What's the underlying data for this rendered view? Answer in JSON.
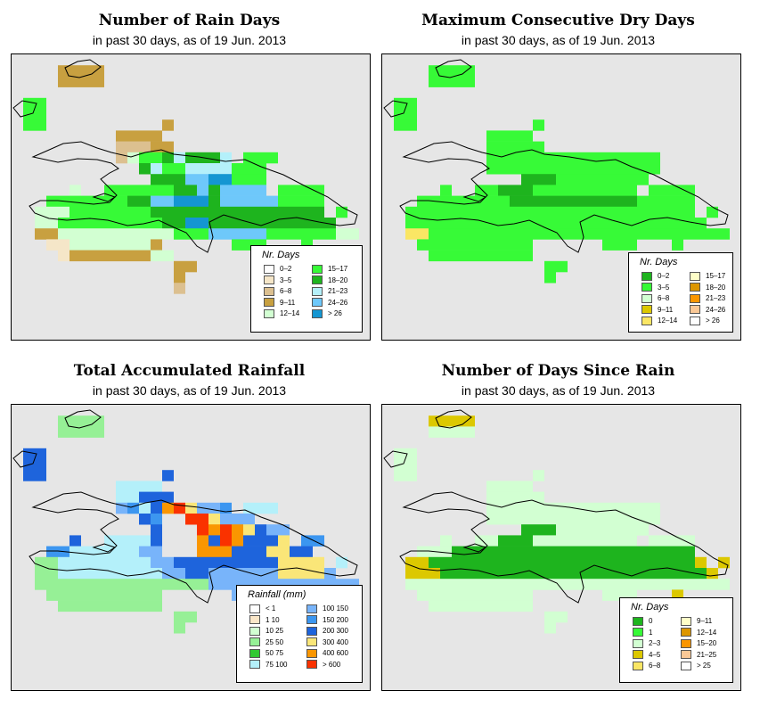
{
  "colors": {
    "map_bg": "#e6e6e6",
    "outline": "#000000"
  },
  "panels": [
    {
      "key": "rain_days",
      "title": "Number of Rain Days",
      "subtitle": "in past 30 days, as of  19 Jun. 2013",
      "legend": {
        "title": "Nr. Days",
        "entries": [
          {
            "label": "0–2",
            "color": "#ffffff"
          },
          {
            "label": "3–5",
            "color": "#f5e6c8"
          },
          {
            "label": "6–8",
            "color": "#dcc090"
          },
          {
            "label": "9–11",
            "color": "#c8a040"
          },
          {
            "label": "12–14",
            "color": "#d2ffd2"
          },
          {
            "label": "15–17",
            "color": "#37fa37"
          },
          {
            "label": "18–20",
            "color": "#1eb41e"
          },
          {
            "label": "21–23",
            "color": "#b4f0fa"
          },
          {
            "label": "24–26",
            "color": "#6ec8fa"
          },
          {
            "label": "> 26",
            "color": "#1496d2"
          }
        ]
      },
      "grid": [
        "...............................",
        "....3333.......................",
        "....3333.......................",
        "...............................",
        ".55............................",
        ".55............................",
        ".55..........3.................",
        ".........3333..................",
        ".........22233.................",
        ".........2455676667.555........",
        "...........67557777555.........",
        "............6668899555.........",
        ".....4..55555566868888.5555....",
        "...555555566889996888885555....",
        "..4445555555666666666666666.5..",
        "..44555555555669966666666666...",
        "..3344444444445558888855555544.",
        "...1144444443......555...5.....",
        "....1333333344.................",
        "..............33...............",
        "..............3................",
        "..............2.......................",
        "...............................",
        "...............................",
        "...............................",
        "...............................",
        "..............................."
      ]
    },
    {
      "key": "dry_days",
      "title": "Maximum Consecutive Dry Days",
      "subtitle": "in past 30 days, as of  19 Jun. 2013",
      "legend": {
        "title": "Nr. Days",
        "entries": [
          {
            "label": "0–2",
            "color": "#1eb41e"
          },
          {
            "label": "3–5",
            "color": "#37fa37"
          },
          {
            "label": "6–8",
            "color": "#d2ffd2"
          },
          {
            "label": "9–11",
            "color": "#dcc800"
          },
          {
            "label": "12–14",
            "color": "#fae664"
          },
          {
            "label": "15–17",
            "color": "#ffffc8"
          },
          {
            "label": "18–20",
            "color": "#dc9600"
          },
          {
            "label": "21–23",
            "color": "#fa9600"
          },
          {
            "label": "24–26",
            "color": "#fac896"
          },
          {
            "label": "> 26",
            "color": "#ffffff"
          }
        ]
      },
      "grid": [
        "...............................",
        "....1111.......................",
        "....1111.......................",
        "...............................",
        ".11............................",
        ".11............................",
        ".11..........1.................",
        ".........1111..................",
        ".........11111.................",
        ".........111111111111111.......",
        ".........111111111111111.......",
        "............00011111111........",
        ".....1..11000111111111.1111....",
        "...111111110000000000011111....",
        "..1111111111111111111111111.1..",
        "..11111111111111111111111111...",
        "..4411111111111111111111111111.",
        "...1111111111......111...1.....",
        "....111111111..................",
        "..............11...............",
        "..............1................",
        "...............................",
        "...............................",
        "...............................",
        "...............................",
        "...............................",
        "..............................."
      ]
    },
    {
      "key": "rainfall",
      "title": "Total Accumulated Rainfall",
      "subtitle": "in past 30 days, as of  19 Jun. 2013",
      "legend": {
        "title": "Rainfall (mm)",
        "entries": [
          {
            "label": "< 1",
            "color": "#ffffff"
          },
          {
            "label": "1   10",
            "color": "#fae6c8"
          },
          {
            "label": "10   25",
            "color": "#d2ffd2"
          },
          {
            "label": "25   50",
            "color": "#96f096"
          },
          {
            "label": "50   75",
            "color": "#32c832"
          },
          {
            "label": "75  100",
            "color": "#b4f0fa"
          },
          {
            "label": "100  150",
            "color": "#78b4fa"
          },
          {
            "label": "150  200",
            "color": "#3c96f0"
          },
          {
            "label": "200  300",
            "color": "#1e64dc"
          },
          {
            "label": "300  400",
            "color": "#fae678"
          },
          {
            "label": "400  600",
            "color": "#fa9600"
          },
          {
            "label": "> 600",
            "color": "#fa3200"
          }
        ]
      },
      "grid": [
        "...............................",
        "....3333.......................",
        "....3333.......................",
        "...............................",
        ".88............................",
        ".88............................",
        ".88..........8.................",
        ".........5555..................",
        ".........55888.................",
        ".........6758AB9667.555........",
        "...........87CCBB9666..........",
        "............8CCCBABA9866.......",
        ".....8..55558CCCA8BA8889.77....",
        "...7755555566CCCAAA8889988.....",
        "..3355555555668888888889999.5..",
        "..33555555555668866666699996...",
        "..3333333333333336666666666666.",
        "...3333333333......666...5.....",
        "....333333333..................",
        "..............33...............",
        "..............3................",
        "...............................",
        "...............................",
        "...............................",
        "...............................",
        "...............................",
        "..............................."
      ]
    },
    {
      "key": "days_since",
      "title": "Number of Days Since Rain",
      "subtitle": "in past 30 days, as of  19 Jun. 2013",
      "legend": {
        "title": "Nr. Days",
        "entries": [
          {
            "label": "0",
            "color": "#1eb41e"
          },
          {
            "label": "1",
            "color": "#37fa37"
          },
          {
            "label": "2–3",
            "color": "#d2ffd2"
          },
          {
            "label": "4–5",
            "color": "#dcc800"
          },
          {
            "label": "6–8",
            "color": "#fae664"
          },
          {
            "label": "9–11",
            "color": "#ffffc8"
          },
          {
            "label": "12–14",
            "color": "#dc9600"
          },
          {
            "label": "15–20",
            "color": "#fa9600"
          },
          {
            "label": "21–25",
            "color": "#fac896"
          },
          {
            "label": "> 25",
            "color": "#ffffff"
          }
        ]
      },
      "grid": [
        "...............................",
        "....3333.......................",
        "....2222.......................",
        "...............................",
        ".22............................",
        ".22............................",
        ".22..........2.................",
        ".........2222..................",
        ".........22222.................",
        ".........222222222222222.......",
        ".........222222222222222.......",
        "............00022222222........",
        ".....2..22000222222222.2222....",
        "...222000000000000000000000....",
        "..33000000000000000000000003.3..",
        "..333000000000000000000000003..",
        "..2222222222222222222222222222.",
        "...2222222222......222...3.....",
        "....222222222..................",
        "..............22...............",
        "..............2................",
        "...............................",
        "...............................",
        "...............................",
        "...............................",
        "...............................",
        "..............................."
      ]
    }
  ]
}
